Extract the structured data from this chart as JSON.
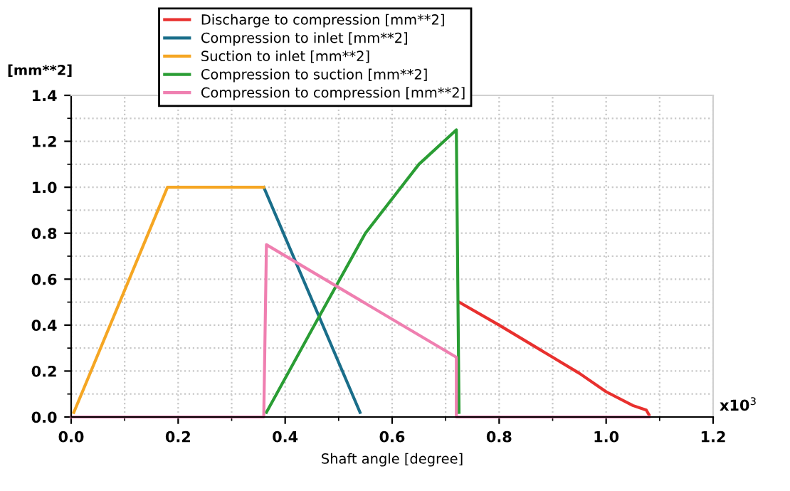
{
  "chart_data": {
    "type": "line",
    "xlabel": "Shaft angle [degree]",
    "ylabel": "[mm**2]",
    "annotations": [
      "x10$^{3}$"
    ],
    "xlim": [
      0,
      1.2
    ],
    "xticks": [
      {
        "value": 0,
        "label": "0.0"
      },
      0.2,
      0.4,
      0.6,
      0.8,
      {
        "value": 1,
        "label": "1.0"
      },
      1.2
    ],
    "ylim": [
      0,
      1.4
    ],
    "yticks": [
      {
        "value": 0,
        "label": "0.0"
      },
      0.2,
      0.4,
      0.6,
      0.8,
      {
        "value": 1,
        "label": "1.0"
      },
      1.2,
      1.4
    ],
    "grid": true,
    "legend": "top",
    "line_style": "solid",
    "marker": "none",
    "series": [
      {
        "name": "Discharge to compression [mm**2]",
        "color": "#e8302e",
        "x": [
          0.725,
          0.8,
          0.9,
          0.95,
          1.0,
          1.05,
          1.075,
          1.08
        ],
        "values": [
          0.5,
          0.4,
          0.26,
          0.19,
          0.11,
          0.05,
          0.03,
          0.01
        ]
      },
      {
        "name": "Compression to inlet [mm**2]",
        "color": "#1a6e8a",
        "x": [
          0.36,
          0.54
        ],
        "values": [
          1.0,
          0.02
        ]
      },
      {
        "name": "Suction to inlet [mm**2]",
        "color": "#f5a623",
        "x": [
          0.005,
          0.18,
          0.36
        ],
        "values": [
          0.02,
          1.0,
          1.0
        ]
      },
      {
        "name": "Compression to suction [mm**2]",
        "color": "#2a9d34",
        "x": [
          0.365,
          0.45,
          0.55,
          0.65,
          0.72,
          0.725
        ],
        "values": [
          0.02,
          0.38,
          0.8,
          1.1,
          1.25,
          0.02
        ]
      },
      {
        "name": "Compression to compression [mm**2]",
        "color": "#ef7fb0",
        "x": [
          0,
          0.36,
          0.365,
          0.72,
          0.72,
          1.08
        ],
        "values": [
          0,
          0,
          0.75,
          0.26,
          0,
          0
        ]
      }
    ]
  }
}
